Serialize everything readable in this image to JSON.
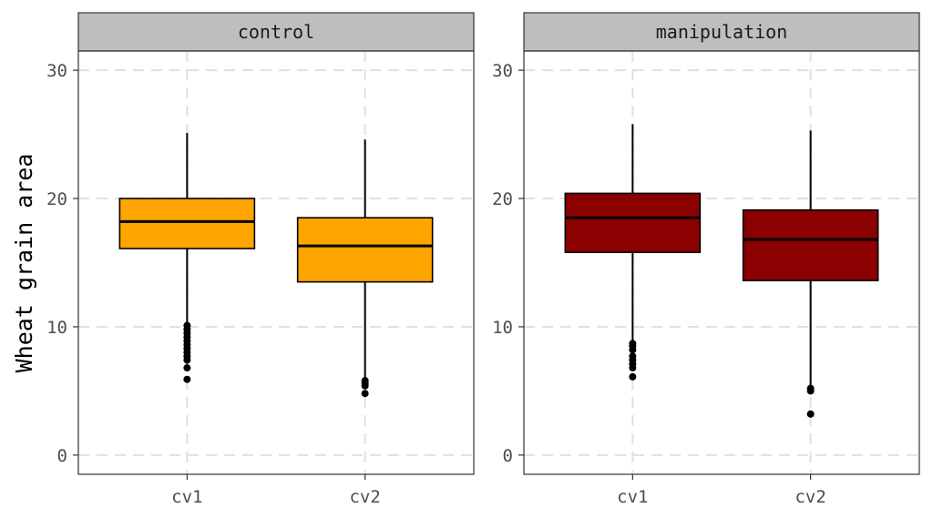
{
  "chart_data": {
    "type": "boxplot",
    "ylabel": "Wheat grain area",
    "xlabel": "",
    "ylim": [
      -1.5,
      31.5
    ],
    "yticks": [
      0,
      10,
      20,
      30
    ],
    "categories": [
      "cv1",
      "cv2"
    ],
    "grid": true,
    "facets": [
      {
        "label": "control",
        "fill": "#FFA500",
        "boxes": [
          {
            "category": "cv1",
            "min": 10.2,
            "q1": 16.1,
            "median": 18.2,
            "q3": 20.0,
            "max": 25.1,
            "outliers": [
              10.1,
              9.8,
              9.5,
              9.2,
              8.9,
              8.6,
              8.3,
              8.0,
              7.7,
              7.4,
              6.8,
              5.9
            ]
          },
          {
            "category": "cv2",
            "min": 6.0,
            "q1": 13.5,
            "median": 16.3,
            "q3": 18.5,
            "max": 24.6,
            "outliers": [
              5.8,
              5.6,
              5.4,
              4.8
            ]
          }
        ]
      },
      {
        "label": "manipulation",
        "fill": "#8B0000",
        "boxes": [
          {
            "category": "cv1",
            "min": 8.9,
            "q1": 15.8,
            "median": 18.5,
            "q3": 20.4,
            "max": 25.8,
            "outliers": [
              8.7,
              8.5,
              8.2,
              7.7,
              7.4,
              7.1,
              6.8,
              6.1
            ]
          },
          {
            "category": "cv2",
            "min": 5.4,
            "q1": 13.6,
            "median": 16.8,
            "q3": 19.1,
            "max": 25.3,
            "outliers": [
              5.2,
              5.0,
              3.2
            ]
          }
        ]
      }
    ]
  }
}
